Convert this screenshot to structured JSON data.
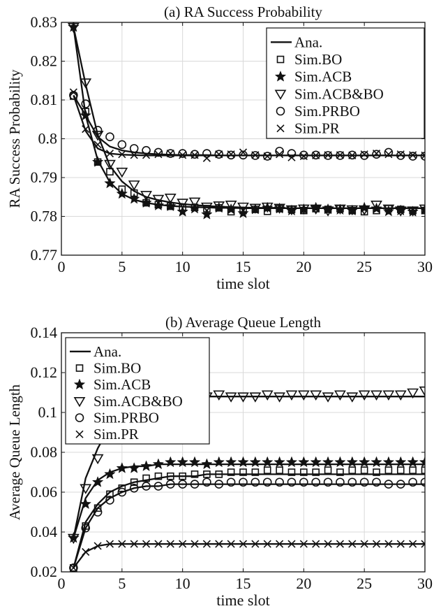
{
  "chart_data": [
    {
      "type": "line",
      "title": "(a) RA Success Probability",
      "xlabel": "time slot",
      "ylabel": "RA Success Probability",
      "xlim": [
        0,
        30
      ],
      "ylim": [
        0.77,
        0.83
      ],
      "xticks": [
        0,
        5,
        10,
        15,
        20,
        25,
        30
      ],
      "yticks": [
        0.77,
        0.78,
        0.79,
        0.8,
        0.81,
        0.82,
        0.83
      ],
      "grid": true,
      "legend_position": "top-right",
      "legend": [
        "Ana.",
        "Sim.BO",
        "Sim.ACB",
        "Sim.ACB&BO",
        "Sim.PRBO",
        "Sim.PR"
      ],
      "x": [
        1,
        2,
        3,
        4,
        5,
        6,
        7,
        8,
        9,
        10,
        11,
        12,
        13,
        14,
        15,
        16,
        17,
        18,
        19,
        20,
        21,
        22,
        23,
        24,
        25,
        26,
        27,
        28,
        29,
        30
      ],
      "analytical": [
        {
          "values": [
            0.8288,
            0.806,
            0.7945,
            0.7888,
            0.7858,
            0.7843,
            0.7835,
            0.783,
            0.7827,
            0.7825,
            0.7824,
            0.7823,
            0.7822,
            0.7822,
            0.7821,
            0.7821,
            0.7821,
            0.7821,
            0.7821,
            0.7821,
            0.7821,
            0.7821,
            0.7821,
            0.7821,
            0.7821,
            0.7821,
            0.7821,
            0.7821,
            0.7821,
            0.7821
          ]
        },
        {
          "values": [
            0.8288,
            0.814,
            0.801,
            0.793,
            0.789,
            0.7865,
            0.785,
            0.7842,
            0.7836,
            0.7832,
            0.7829,
            0.7827,
            0.7825,
            0.7824,
            0.7823,
            0.7822,
            0.7822,
            0.7822,
            0.7821,
            0.7821,
            0.7821,
            0.7821,
            0.7821,
            0.7821,
            0.7821,
            0.7821,
            0.7821,
            0.7821,
            0.7821,
            0.7821
          ]
        },
        {
          "values": [
            0.8112,
            0.806,
            0.8005,
            0.798,
            0.797,
            0.7965,
            0.7962,
            0.796,
            0.7959,
            0.7958,
            0.7958,
            0.7958,
            0.7957,
            0.7957,
            0.7957,
            0.7957,
            0.7957,
            0.7957,
            0.7957,
            0.7957,
            0.7957,
            0.7957,
            0.7957,
            0.7957,
            0.7957,
            0.7957,
            0.7957,
            0.7957,
            0.7957,
            0.7957
          ]
        },
        {
          "values": [
            0.8112,
            0.802,
            0.7975,
            0.7962,
            0.7959,
            0.7958,
            0.7957,
            0.7957,
            0.7957,
            0.7957,
            0.7957,
            0.7957,
            0.7957,
            0.7957,
            0.7957,
            0.7957,
            0.7957,
            0.7957,
            0.7957,
            0.7957,
            0.7957,
            0.7957,
            0.7957,
            0.7957,
            0.7957,
            0.7957,
            0.7957,
            0.7957,
            0.7957,
            0.7957
          ]
        }
      ],
      "series": [
        {
          "name": "Sim.BO",
          "marker": "square",
          "values": [
            0.811,
            0.807,
            0.794,
            0.7915,
            0.787,
            0.786,
            0.7835,
            0.783,
            0.7826,
            0.7822,
            0.7823,
            0.782,
            0.7822,
            0.7812,
            0.7815,
            0.7818,
            0.7813,
            0.782,
            0.7818,
            0.7815,
            0.782,
            0.7818,
            0.782,
            0.7815,
            0.7812,
            0.7815,
            0.782,
            0.7818,
            0.7815,
            0.7815
          ]
        },
        {
          "name": "Sim.ACB",
          "marker": "star",
          "values": [
            0.8288,
            0.806,
            0.794,
            0.7885,
            0.7858,
            0.7845,
            0.7835,
            0.7828,
            0.7826,
            0.7812,
            0.782,
            0.7805,
            0.7822,
            0.7818,
            0.7808,
            0.7818,
            0.7822,
            0.782,
            0.7815,
            0.7818,
            0.7822,
            0.7818,
            0.7817,
            0.7815,
            0.7822,
            0.782,
            0.7813,
            0.7815,
            0.7812,
            0.7817
          ]
        },
        {
          "name": "Sim.ACB&BO",
          "marker": "triangle-down",
          "values": [
            0.8288,
            0.8145,
            0.801,
            0.7935,
            0.7915,
            0.7882,
            0.7855,
            0.7845,
            0.7848,
            0.7835,
            0.7838,
            0.7825,
            0.7828,
            0.783,
            0.7825,
            0.7822,
            0.7825,
            0.7822,
            0.7818,
            0.782,
            0.782,
            0.7815,
            0.782,
            0.7818,
            0.7818,
            0.783,
            0.782,
            0.7815,
            0.7815,
            0.782
          ]
        },
        {
          "name": "Sim.PRBO",
          "marker": "circle",
          "values": [
            0.8112,
            0.809,
            0.8022,
            0.8005,
            0.7985,
            0.7975,
            0.797,
            0.7965,
            0.7962,
            0.7962,
            0.796,
            0.7962,
            0.796,
            0.7958,
            0.7958,
            0.7957,
            0.7955,
            0.7968,
            0.7962,
            0.7958,
            0.7958,
            0.7957,
            0.7957,
            0.7958,
            0.7957,
            0.796,
            0.7965,
            0.7957,
            0.7955,
            0.7955
          ]
        },
        {
          "name": "Sim.PR",
          "marker": "x",
          "values": [
            0.812,
            0.8025,
            0.7985,
            0.7962,
            0.796,
            0.7958,
            0.7958,
            0.796,
            0.7962,
            0.7958,
            0.7958,
            0.795,
            0.796,
            0.796,
            0.7965,
            0.7958,
            0.7955,
            0.796,
            0.7952,
            0.7955,
            0.7957,
            0.7958,
            0.7958,
            0.7957,
            0.796,
            0.7962,
            0.796,
            0.796,
            0.7958,
            0.7957
          ]
        }
      ]
    },
    {
      "type": "line",
      "title": "(b) Average Queue Length",
      "xlabel": "time slot",
      "ylabel": "Average Queue Length",
      "xlim": [
        0,
        30
      ],
      "ylim": [
        0.02,
        0.14
      ],
      "xticks": [
        0,
        5,
        10,
        15,
        20,
        25,
        30
      ],
      "yticks": [
        0.02,
        0.04,
        0.06,
        0.08,
        0.1,
        0.12,
        0.14
      ],
      "grid": true,
      "legend_position": "top-left",
      "legend": [
        "Ana.",
        "Sim.BO",
        "Sim.ACB",
        "Sim.ACB&BO",
        "Sim.PRBO",
        "Sim.PR"
      ],
      "x": [
        1,
        2,
        3,
        4,
        5,
        6,
        7,
        8,
        9,
        10,
        11,
        12,
        13,
        14,
        15,
        16,
        17,
        18,
        19,
        20,
        21,
        22,
        23,
        24,
        25,
        26,
        27,
        28,
        29,
        30
      ],
      "analytical": [
        {
          "values": [
            0.022,
            0.045,
            0.054,
            0.06,
            0.063,
            0.065,
            0.066,
            0.067,
            0.068,
            0.068,
            0.068,
            0.069,
            0.069,
            0.069,
            0.069,
            0.069,
            0.069,
            0.069,
            0.069,
            0.069,
            0.069,
            0.069,
            0.069,
            0.069,
            0.069,
            0.069,
            0.069,
            0.069,
            0.069,
            0.069
          ]
        },
        {
          "values": [
            0.037,
            0.057,
            0.066,
            0.07,
            0.072,
            0.073,
            0.073,
            0.074,
            0.074,
            0.074,
            0.074,
            0.074,
            0.074,
            0.074,
            0.074,
            0.074,
            0.074,
            0.074,
            0.074,
            0.074,
            0.074,
            0.074,
            0.074,
            0.074,
            0.074,
            0.074,
            0.074,
            0.074,
            0.074,
            0.074
          ]
        },
        {
          "values": [
            0.037,
            0.067,
            0.082,
            0.093,
            0.099,
            0.103,
            0.105,
            0.106,
            0.107,
            0.107,
            0.108,
            0.108,
            0.108,
            0.108,
            0.108,
            0.108,
            0.108,
            0.108,
            0.108,
            0.108,
            0.108,
            0.108,
            0.108,
            0.108,
            0.108,
            0.108,
            0.108,
            0.108,
            0.108,
            0.108
          ]
        },
        {
          "values": [
            0.022,
            0.042,
            0.052,
            0.057,
            0.06,
            0.062,
            0.063,
            0.063,
            0.064,
            0.064,
            0.064,
            0.064,
            0.064,
            0.064,
            0.064,
            0.064,
            0.064,
            0.064,
            0.064,
            0.064,
            0.064,
            0.064,
            0.064,
            0.064,
            0.064,
            0.064,
            0.064,
            0.064,
            0.064,
            0.064
          ]
        },
        {
          "values": [
            0.022,
            0.03,
            0.033,
            0.034,
            0.034,
            0.034,
            0.034,
            0.034,
            0.034,
            0.034,
            0.034,
            0.034,
            0.034,
            0.034,
            0.034,
            0.034,
            0.034,
            0.034,
            0.034,
            0.034,
            0.034,
            0.034,
            0.034,
            0.034,
            0.034,
            0.034,
            0.034,
            0.034,
            0.034,
            0.034
          ]
        }
      ],
      "series": [
        {
          "name": "Sim.BO",
          "marker": "square",
          "values": [
            0.022,
            0.043,
            0.052,
            0.059,
            0.062,
            0.065,
            0.067,
            0.068,
            0.068,
            0.068,
            0.069,
            0.069,
            0.069,
            0.07,
            0.07,
            0.07,
            0.071,
            0.071,
            0.07,
            0.07,
            0.07,
            0.071,
            0.07,
            0.071,
            0.071,
            0.07,
            0.071,
            0.071,
            0.071,
            0.071
          ]
        },
        {
          "name": "Sim.ACB",
          "marker": "star",
          "values": [
            0.037,
            0.054,
            0.065,
            0.069,
            0.072,
            0.072,
            0.073,
            0.074,
            0.075,
            0.075,
            0.075,
            0.074,
            0.075,
            0.075,
            0.075,
            0.075,
            0.075,
            0.075,
            0.075,
            0.075,
            0.075,
            0.075,
            0.075,
            0.075,
            0.075,
            0.075,
            0.075,
            0.075,
            0.075,
            0.075
          ]
        },
        {
          "name": "Sim.ACB&BO",
          "marker": "triangle-down",
          "values": [
            0.037,
            0.062,
            0.077,
            0.093,
            0.1,
            0.104,
            0.105,
            0.106,
            0.107,
            0.107,
            0.108,
            0.108,
            0.109,
            0.108,
            0.108,
            0.108,
            0.109,
            0.108,
            0.109,
            0.109,
            0.109,
            0.108,
            0.109,
            0.108,
            0.109,
            0.109,
            0.109,
            0.109,
            0.11,
            0.111
          ]
        },
        {
          "name": "Sim.PRBO",
          "marker": "circle",
          "values": [
            0.022,
            0.042,
            0.05,
            0.056,
            0.06,
            0.062,
            0.063,
            0.063,
            0.064,
            0.064,
            0.064,
            0.065,
            0.064,
            0.065,
            0.065,
            0.065,
            0.065,
            0.065,
            0.065,
            0.065,
            0.065,
            0.065,
            0.065,
            0.065,
            0.065,
            0.065,
            0.064,
            0.064,
            0.065,
            0.065
          ]
        },
        {
          "name": "Sim.PR",
          "marker": "x",
          "values": [
            0.022,
            0.03,
            0.033,
            0.034,
            0.034,
            0.034,
            0.034,
            0.034,
            0.034,
            0.034,
            0.034,
            0.034,
            0.034,
            0.034,
            0.034,
            0.034,
            0.034,
            0.034,
            0.034,
            0.034,
            0.034,
            0.034,
            0.034,
            0.034,
            0.034,
            0.034,
            0.034,
            0.034,
            0.034,
            0.034
          ]
        }
      ]
    }
  ]
}
